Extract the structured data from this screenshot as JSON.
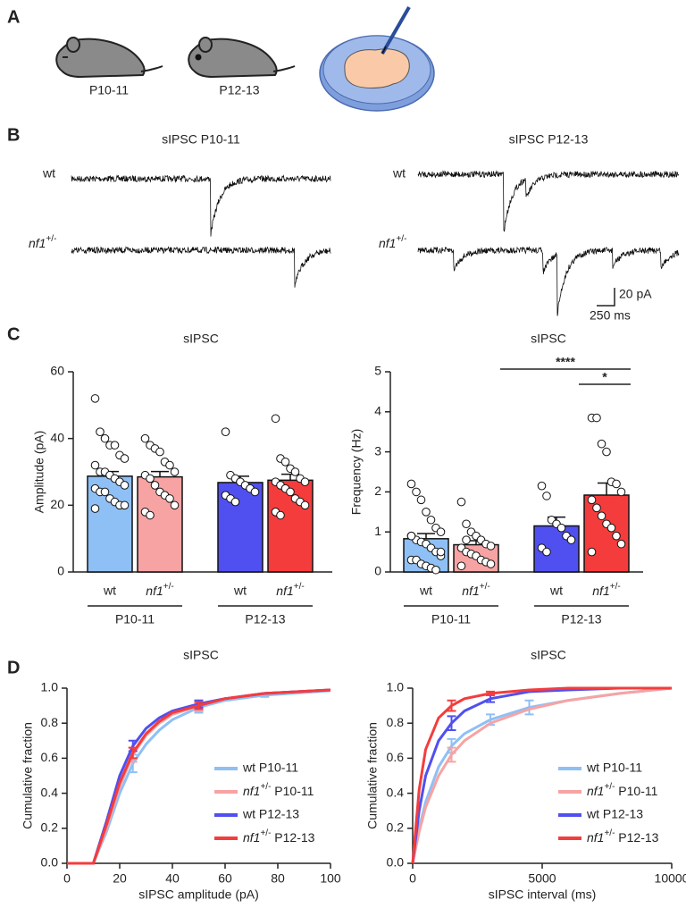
{
  "panels": {
    "A": {
      "label": "A",
      "ages": [
        "P10-11",
        "P12-13"
      ]
    },
    "B": {
      "label": "B",
      "titles": [
        "sIPSC P10-11",
        "sIPSC P12-13"
      ],
      "rows": [
        "wt",
        "nf1+/-"
      ],
      "scale": [
        "20 pA",
        "250 ms"
      ]
    },
    "C": {
      "label": "C"
    },
    "D": {
      "label": "D"
    }
  },
  "chart_data": [
    {
      "type": "bar",
      "title": "sIPSC",
      "ylabel": "Amplitude (pA)",
      "categories": [
        "wt",
        "nf1+/-",
        "wt",
        "nf1+/-"
      ],
      "groups": [
        "P10-11",
        "P12-13"
      ],
      "colors": [
        "#8fc0f5",
        "#f7a3a3",
        "#5050f0",
        "#f53c3c"
      ],
      "values": [
        28.7,
        28.5,
        26.8,
        27.5
      ],
      "errors": [
        1.4,
        1.6,
        1.9,
        1.8
      ],
      "points": [
        [
          52,
          42,
          40,
          38,
          38,
          35,
          34,
          32,
          30,
          30,
          29,
          28,
          27,
          26,
          25,
          24,
          24,
          22,
          21,
          20,
          20,
          19
        ],
        [
          40,
          38,
          37,
          36,
          33,
          32,
          30,
          29,
          28,
          26,
          24,
          23,
          22,
          20,
          18,
          17
        ],
        [
          42,
          29,
          28,
          27,
          26,
          25,
          24,
          23,
          22,
          21
        ],
        [
          46,
          34,
          33,
          31,
          30,
          28,
          27,
          27,
          26,
          25,
          24,
          22,
          21,
          20,
          18,
          17
        ]
      ],
      "ylim": [
        0,
        60
      ],
      "yticks": [
        0,
        20,
        40,
        60
      ]
    },
    {
      "type": "bar",
      "title": "sIPSC",
      "ylabel": "Frequency (Hz)",
      "categories": [
        "wt",
        "nf1+/-",
        "wt",
        "nf1+/-"
      ],
      "groups": [
        "P10-11",
        "P12-13"
      ],
      "colors": [
        "#8fc0f5",
        "#f7a3a3",
        "#5050f0",
        "#f53c3c"
      ],
      "values": [
        0.83,
        0.68,
        1.15,
        1.92
      ],
      "errors": [
        0.13,
        0.1,
        0.22,
        0.3
      ],
      "points": [
        [
          2.2,
          2.0,
          1.8,
          1.5,
          1.3,
          1.1,
          1.0,
          0.9,
          0.8,
          0.75,
          0.7,
          0.6,
          0.5,
          0.4,
          0.3,
          0.3,
          0.2,
          0.15,
          0.1,
          0.05,
          0.5,
          0.9
        ],
        [
          1.75,
          1.2,
          1.0,
          0.9,
          0.8,
          0.7,
          0.65,
          0.6,
          0.5,
          0.45,
          0.4,
          0.3,
          0.25,
          0.2,
          0.15,
          0.8
        ],
        [
          2.15,
          1.9,
          1.3,
          1.2,
          1.1,
          0.9,
          0.8,
          0.6,
          0.5
        ],
        [
          3.85,
          3.85,
          3.2,
          3.0,
          2.25,
          2.2,
          2.0,
          1.8,
          1.6,
          1.4,
          1.2,
          1.1,
          0.9,
          0.7,
          0.5
        ]
      ],
      "annotations": [
        "****",
        "*"
      ],
      "ylim": [
        0,
        5
      ],
      "yticks": [
        0,
        1,
        2,
        3,
        4,
        5
      ]
    },
    {
      "type": "line",
      "title": "sIPSC",
      "xlabel": "sIPSC amplitude (pA)",
      "ylabel": "Cumulative fraction",
      "x": [
        0,
        10,
        15,
        20,
        25,
        30,
        35,
        40,
        50,
        60,
        75,
        100
      ],
      "series": [
        {
          "name": "wt P10-11",
          "color": "#8fc0f5",
          "values": [
            0,
            0,
            0.18,
            0.4,
            0.57,
            0.68,
            0.76,
            0.82,
            0.89,
            0.93,
            0.96,
            0.985
          ],
          "errors": [
            null,
            null,
            null,
            null,
            0.05,
            null,
            null,
            null,
            0.03,
            null,
            0.01,
            null
          ]
        },
        {
          "name": "nf1+/- P10-11",
          "color": "#f7a3a3",
          "values": [
            0,
            0,
            0.2,
            0.44,
            0.62,
            0.73,
            0.8,
            0.85,
            0.9,
            0.94,
            0.97,
            0.99
          ],
          "errors": [
            null,
            null,
            null,
            null,
            0.04,
            null,
            null,
            null,
            0.03,
            null,
            null,
            null
          ]
        },
        {
          "name": "wt P12-13",
          "color": "#5050f0",
          "values": [
            0,
            0,
            0.24,
            0.5,
            0.67,
            0.77,
            0.83,
            0.87,
            0.91,
            0.94,
            0.97,
            0.99
          ],
          "errors": [
            null,
            null,
            null,
            null,
            0.03,
            null,
            null,
            null,
            0.02,
            null,
            null,
            null
          ]
        },
        {
          "name": "nf1+/- P12-13",
          "color": "#f53c3c",
          "values": [
            0,
            0,
            0.22,
            0.46,
            0.63,
            0.74,
            0.81,
            0.86,
            0.9,
            0.94,
            0.97,
            0.99
          ],
          "errors": [
            null,
            null,
            null,
            null,
            0.03,
            null,
            null,
            null,
            0.02,
            null,
            null,
            null
          ]
        }
      ],
      "xlim": [
        0,
        100
      ],
      "xticks": [
        0,
        20,
        40,
        60,
        80,
        100
      ],
      "ylim": [
        0,
        1
      ],
      "yticks": [
        {
          "value": 0,
          "label": "0.0"
        },
        {
          "value": 0.2,
          "label": "0.2"
        },
        {
          "value": 0.4,
          "label": "0.4"
        },
        {
          "value": 0.6,
          "label": "0.6"
        },
        {
          "value": 0.8,
          "label": "0.8"
        },
        {
          "value": 1,
          "label": "1.0"
        }
      ]
    },
    {
      "type": "line",
      "title": "sIPSC",
      "xlabel": "sIPSC interval (ms)",
      "ylabel": "Cumulative fraction",
      "x": [
        0,
        250,
        500,
        1000,
        1500,
        2000,
        3000,
        4500,
        6000,
        8000,
        10000
      ],
      "series": [
        {
          "name": "wt P10-11",
          "color": "#8fc0f5",
          "values": [
            0,
            0.2,
            0.35,
            0.55,
            0.67,
            0.74,
            0.82,
            0.89,
            0.93,
            0.97,
            1
          ],
          "errors": [
            null,
            null,
            null,
            null,
            0.04,
            null,
            0.03,
            0.04,
            null,
            null,
            null
          ]
        },
        {
          "name": "nf1+/- P10-11",
          "color": "#f7a3a3",
          "values": [
            0,
            0.18,
            0.32,
            0.5,
            0.62,
            0.7,
            0.8,
            0.88,
            0.93,
            0.97,
            1
          ],
          "errors": [
            null,
            null,
            null,
            null,
            0.04,
            null,
            null,
            null,
            null,
            null,
            null
          ]
        },
        {
          "name": "wt P12-13",
          "color": "#5050f0",
          "values": [
            0,
            0.3,
            0.5,
            0.7,
            0.8,
            0.87,
            0.94,
            0.98,
            0.99,
            1,
            1
          ],
          "errors": [
            null,
            null,
            null,
            null,
            0.04,
            null,
            0.02,
            null,
            null,
            null,
            null
          ]
        },
        {
          "name": "nf1+/- P12-13",
          "color": "#f53c3c",
          "values": [
            0,
            0.42,
            0.65,
            0.83,
            0.9,
            0.94,
            0.97,
            0.99,
            1,
            1,
            1
          ],
          "errors": [
            null,
            null,
            null,
            null,
            0.03,
            null,
            0.01,
            null,
            null,
            null,
            null
          ]
        }
      ],
      "xlim": [
        0,
        10000
      ],
      "xticks": [
        0,
        5000,
        10000
      ],
      "ylim": [
        0,
        1
      ],
      "yticks": [
        {
          "value": 0,
          "label": "0.0"
        },
        {
          "value": 0.2,
          "label": "0.2"
        },
        {
          "value": 0.4,
          "label": "0.4"
        },
        {
          "value": 0.6,
          "label": "0.6"
        },
        {
          "value": 0.8,
          "label": "0.8"
        },
        {
          "value": 1,
          "label": "1.0"
        }
      ]
    }
  ]
}
